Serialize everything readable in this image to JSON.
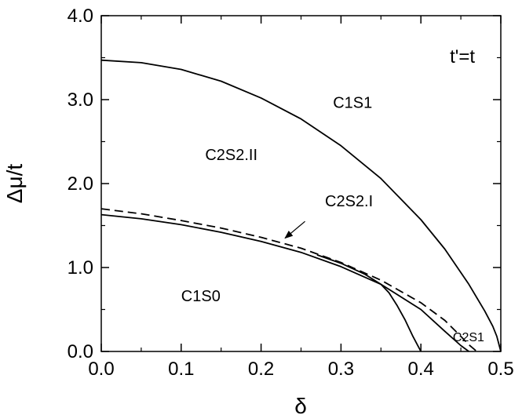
{
  "chart_data": {
    "type": "line",
    "title": "t'=t",
    "xlabel": "δ",
    "ylabel": "Δμ/t",
    "xlim": [
      0.0,
      0.5
    ],
    "ylim": [
      0.0,
      4.0
    ],
    "x_ticks": [
      "0.0",
      "0.1",
      "0.2",
      "0.3",
      "0.4",
      "0.5"
    ],
    "y_ticks": [
      "0.0",
      "1.0",
      "2.0",
      "3.0",
      "4.0"
    ],
    "grid": false,
    "series": [
      {
        "style": "solid",
        "x": [
          0.0,
          0.05,
          0.1,
          0.15,
          0.2,
          0.25,
          0.3,
          0.35,
          0.4,
          0.43,
          0.46,
          0.48,
          0.49,
          0.495,
          0.5
        ],
        "y": [
          3.47,
          3.44,
          3.36,
          3.22,
          3.02,
          2.77,
          2.45,
          2.06,
          1.57,
          1.22,
          0.8,
          0.48,
          0.3,
          0.18,
          0.0
        ]
      },
      {
        "style": "dashed",
        "x": [
          0.0,
          0.05,
          0.1,
          0.15,
          0.2,
          0.25,
          0.3,
          0.35,
          0.4,
          0.43,
          0.45,
          0.46,
          0.47
        ],
        "y": [
          1.7,
          1.64,
          1.56,
          1.47,
          1.36,
          1.23,
          1.06,
          0.85,
          0.58,
          0.37,
          0.18,
          0.08,
          0.0
        ]
      },
      {
        "style": "solid",
        "x": [
          0.0,
          0.05,
          0.1,
          0.15,
          0.2,
          0.25,
          0.3,
          0.35,
          0.4,
          0.43,
          0.45,
          0.46
        ],
        "y": [
          1.63,
          1.58,
          1.51,
          1.42,
          1.31,
          1.18,
          1.01,
          0.8,
          0.5,
          0.24,
          0.07,
          0.0
        ]
      },
      {
        "style": "solid",
        "x": [
          0.27,
          0.3,
          0.33,
          0.35,
          0.36,
          0.37,
          0.38,
          0.39,
          0.4
        ],
        "y": [
          1.15,
          1.05,
          0.92,
          0.8,
          0.7,
          0.55,
          0.38,
          0.18,
          0.0
        ]
      }
    ],
    "region_labels": [
      {
        "text": "C1S1",
        "x": 0.29,
        "y": 2.9
      },
      {
        "text": "C2S2.II",
        "x": 0.13,
        "y": 2.28
      },
      {
        "text": "C2S2.I",
        "x": 0.28,
        "y": 1.73
      },
      {
        "text": "C1S0",
        "x": 0.1,
        "y": 0.6
      },
      {
        "text": "C2S1",
        "x": 0.44,
        "y": 0.12
      }
    ],
    "annotations": [
      {
        "label": "C2S2.I",
        "arrow_from": [
          0.255,
          1.55
        ],
        "arrow_to": [
          0.23,
          1.35
        ]
      }
    ]
  }
}
